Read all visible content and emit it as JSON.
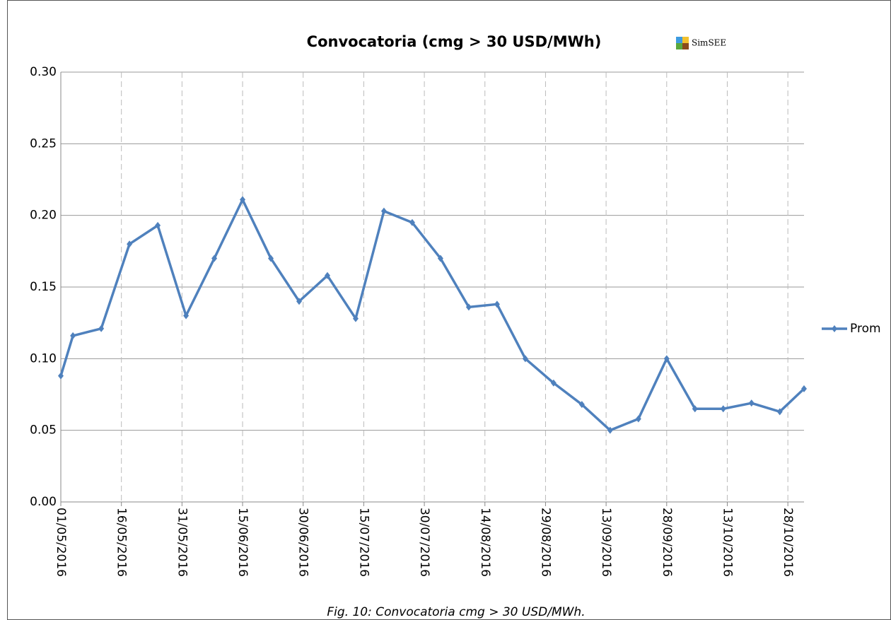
{
  "chart_data": {
    "type": "line",
    "title": "Convocatoria (cmg > 30 USD/MWh)",
    "logo": "SimSEE",
    "caption": "Fig. 10: Convocatoria cmg > 30 USD/MWh.",
    "x": [
      "01/05/2016",
      "04/05/2016",
      "11/05/2016",
      "18/05/2016",
      "25/05/2016",
      "01/06/2016",
      "08/06/2016",
      "15/06/2016",
      "22/06/2016",
      "29/06/2016",
      "06/07/2016",
      "13/07/2016",
      "20/07/2016",
      "27/07/2016",
      "03/08/2016",
      "10/08/2016",
      "17/08/2016",
      "24/08/2016",
      "31/08/2016",
      "07/09/2016",
      "14/09/2016",
      "21/09/2016",
      "28/09/2016",
      "05/10/2016",
      "12/10/2016",
      "19/10/2016",
      "26/10/2016",
      "01/11/2016"
    ],
    "series": [
      {
        "name": "Prom",
        "color": "#4f81bd",
        "values": [
          0.088,
          0.116,
          0.121,
          0.18,
          0.193,
          0.13,
          0.17,
          0.211,
          0.17,
          0.14,
          0.158,
          0.128,
          0.203,
          0.195,
          0.17,
          0.136,
          0.138,
          0.1,
          0.083,
          0.068,
          0.05,
          0.058,
          0.1,
          0.065,
          0.065,
          0.069,
          0.063,
          0.079
        ]
      }
    ],
    "xlim": [
      "01/05/2016",
      "01/11/2016"
    ],
    "xticks": [
      "01/05/2016",
      "16/05/2016",
      "31/05/2016",
      "15/06/2016",
      "30/06/2016",
      "15/07/2016",
      "30/07/2016",
      "14/08/2016",
      "29/08/2016",
      "13/09/2016",
      "28/09/2016",
      "13/10/2016",
      "28/10/2016"
    ],
    "ylim": [
      0,
      0.3
    ],
    "yticks": [
      {
        "value": 0,
        "label": "0.00"
      },
      0.05,
      {
        "value": 0.1,
        "label": "0.10"
      },
      0.15,
      {
        "value": 0.2,
        "label": "0.20"
      },
      0.25,
      {
        "value": 0.3,
        "label": "0.30"
      }
    ],
    "grid": true,
    "legend": "right"
  }
}
